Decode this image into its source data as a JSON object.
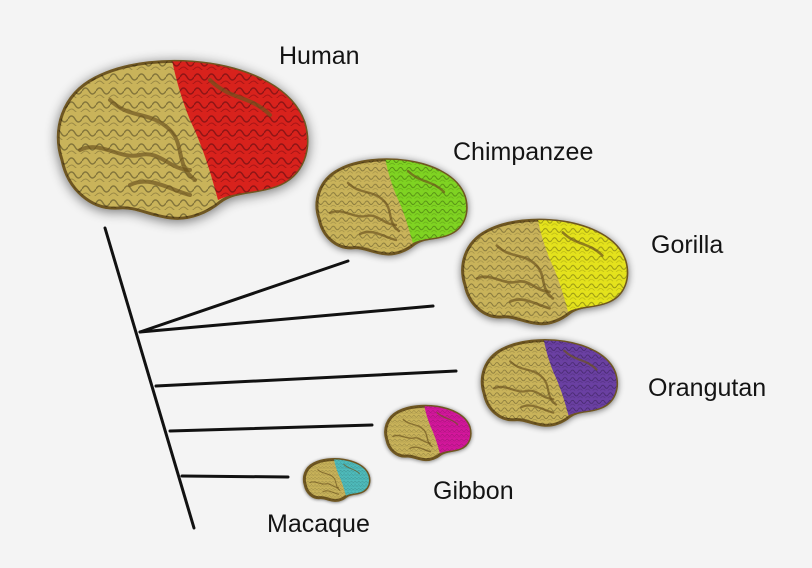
{
  "species": [
    {
      "key": "human",
      "label": "Human",
      "color": "#d8201f"
    },
    {
      "key": "chimpanzee",
      "label": "Chimpanzee",
      "color": "#7fd321"
    },
    {
      "key": "gorilla",
      "label": "Gorilla",
      "color": "#e4e21c"
    },
    {
      "key": "orangutan",
      "label": "Orangutan",
      "color": "#6a3fa2"
    },
    {
      "key": "gibbon",
      "label": "Gibbon",
      "color": "#d4199c"
    },
    {
      "key": "macaque",
      "label": "Macaque",
      "color": "#4fbcbc"
    }
  ],
  "colors": {
    "brain_base": "#c9b35a",
    "brain_dark": "#6e5620",
    "tree_line": "#111111",
    "background": "#f4f4f4"
  }
}
